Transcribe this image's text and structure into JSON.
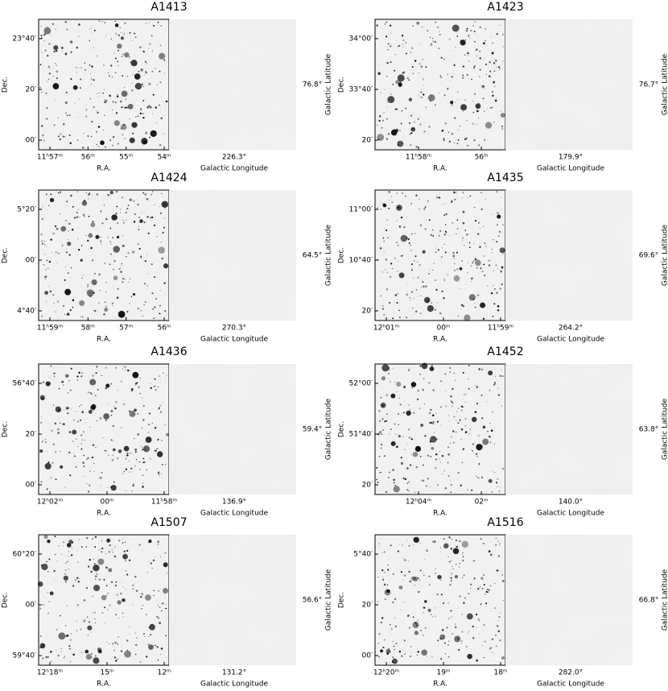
{
  "axis_labels": {
    "ra": "R.A.",
    "dec": "Dec.",
    "glon": "Galactic Longitude",
    "glat": "Galactic Latitude"
  },
  "panels": [
    {
      "title": "A1413",
      "ra_ticks": [
        "11ʰ57ᵐ",
        "56ᵐ",
        "55ᵐ",
        "54ᵐ"
      ],
      "dec_ticks": [
        "23°40′",
        "20′",
        "00′"
      ],
      "glon_tick": "226.3°",
      "glat_tick": "76.8°"
    },
    {
      "title": "A1423",
      "ra_ticks": [
        "11ʰ58ᵐ",
        "56ᵐ"
      ],
      "dec_ticks": [
        "34°00′",
        "33°40′",
        "20′"
      ],
      "glon_tick": "179.9°",
      "glat_tick": "76.7°"
    },
    {
      "title": "A1424",
      "ra_ticks": [
        "11ʰ59ᵐ",
        "58ᵐ",
        "57ᵐ",
        "56ᵐ"
      ],
      "dec_ticks": [
        "5°20′",
        "00′",
        "4°40′"
      ],
      "glon_tick": "270.3°",
      "glat_tick": "64.5°"
    },
    {
      "title": "A1435",
      "ra_ticks": [
        "12ʰ01ᵐ",
        "00ᵐ",
        "11ʰ59ᵐ"
      ],
      "dec_ticks": [
        "11°00′",
        "10°40′",
        "20′"
      ],
      "glon_tick": "264.2°",
      "glat_tick": "69.6°"
    },
    {
      "title": "A1436",
      "ra_ticks": [
        "12ʰ02ᵐ",
        "00ᵐ",
        "11ʰ58ᵐ"
      ],
      "dec_ticks": [
        "56°40′",
        "20′",
        "00′"
      ],
      "glon_tick": "136.9°",
      "glat_tick": "59.4°"
    },
    {
      "title": "A1452",
      "ra_ticks": [
        "12ʰ04ᵐ",
        "02ᵐ"
      ],
      "dec_ticks": [
        "52°00′",
        "51°40′",
        "20′"
      ],
      "glon_tick": "140.0°",
      "glat_tick": "63.8°"
    },
    {
      "title": "A1507",
      "ra_ticks": [
        "12ʰ18ᵐ",
        "15ᵐ",
        "12ᵐ"
      ],
      "dec_ticks": [
        "60°20′",
        "00′",
        "59°40′"
      ],
      "glon_tick": "131.2°",
      "glat_tick": "56.6°"
    },
    {
      "title": "A1516",
      "ra_ticks": [
        "12ʰ20ᵐ",
        "19ᵐ",
        "18ᵐ"
      ],
      "dec_ticks": [
        "5°40′",
        "20′",
        "00′"
      ],
      "glon_tick": "282.0°",
      "glat_tick": "66.8°"
    }
  ]
}
